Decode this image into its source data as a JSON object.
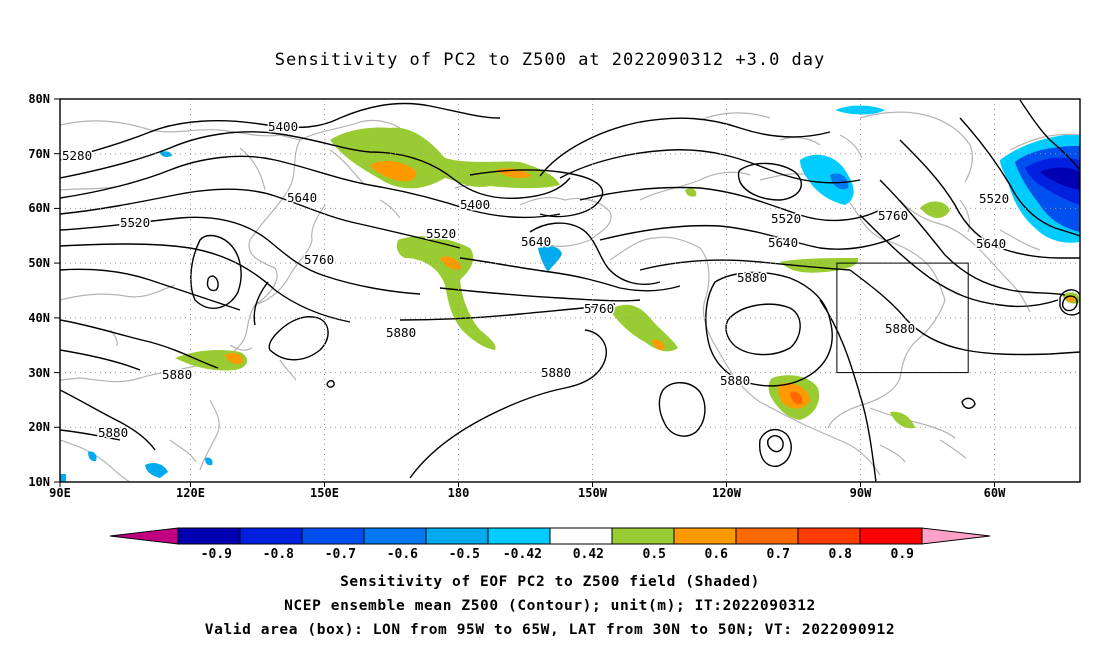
{
  "title": "Sensitivity of PC2 to Z500 at 2022090312 +3.0 day",
  "lat_labels": [
    "80N",
    "70N",
    "60N",
    "50N",
    "40N",
    "30N",
    "20N",
    "10N"
  ],
  "lon_labels": [
    "90E",
    "120E",
    "150E",
    "180",
    "150W",
    "120W",
    "90W",
    "60W"
  ],
  "contour_labels": [
    {
      "text": "5400"
    },
    {
      "text": "5280"
    },
    {
      "text": "5520"
    },
    {
      "text": "5640"
    },
    {
      "text": "5760"
    },
    {
      "text": "5880"
    },
    {
      "text": "5400"
    },
    {
      "text": "5520"
    },
    {
      "text": "5640"
    },
    {
      "text": "5760"
    },
    {
      "text": "5880"
    },
    {
      "text": "5880"
    },
    {
      "text": "5880"
    },
    {
      "text": "5520"
    },
    {
      "text": "5640"
    },
    {
      "text": "5880"
    },
    {
      "text": "5880"
    },
    {
      "text": "5880"
    },
    {
      "text": "5760"
    },
    {
      "text": "5520"
    },
    {
      "text": "5640"
    }
  ],
  "valid_box": {
    "lon_from": "95W",
    "lon_to": "65W",
    "lat_from": "30N",
    "lat_to": "50N"
  },
  "colorbar": {
    "colors": [
      "#0000b0",
      "#0020e0",
      "#0050f0",
      "#0078f0",
      "#00aaee",
      "#00ccff",
      "#ffffff",
      "#99cc33",
      "#ff9900",
      "#ff6a00",
      "#ff3c00",
      "#ff0000"
    ],
    "low_extend_color": "#c00080",
    "high_extend_color": "#ffa0c8",
    "ticks": [
      "-0.9",
      "-0.8",
      "-0.7",
      "-0.6",
      "-0.5",
      "-0.42",
      "0.42",
      "0.5",
      "0.6",
      "0.7",
      "0.8",
      "0.9"
    ]
  },
  "captions": [
    "Sensitivity of EOF PC2 to Z500 field (Shaded)",
    "NCEP ensemble mean Z500 (Contour); unit(m); IT:2022090312",
    "Valid area (box): LON from 95W to 65W, LAT from 30N to 50N; VT: 2022090912"
  ]
}
